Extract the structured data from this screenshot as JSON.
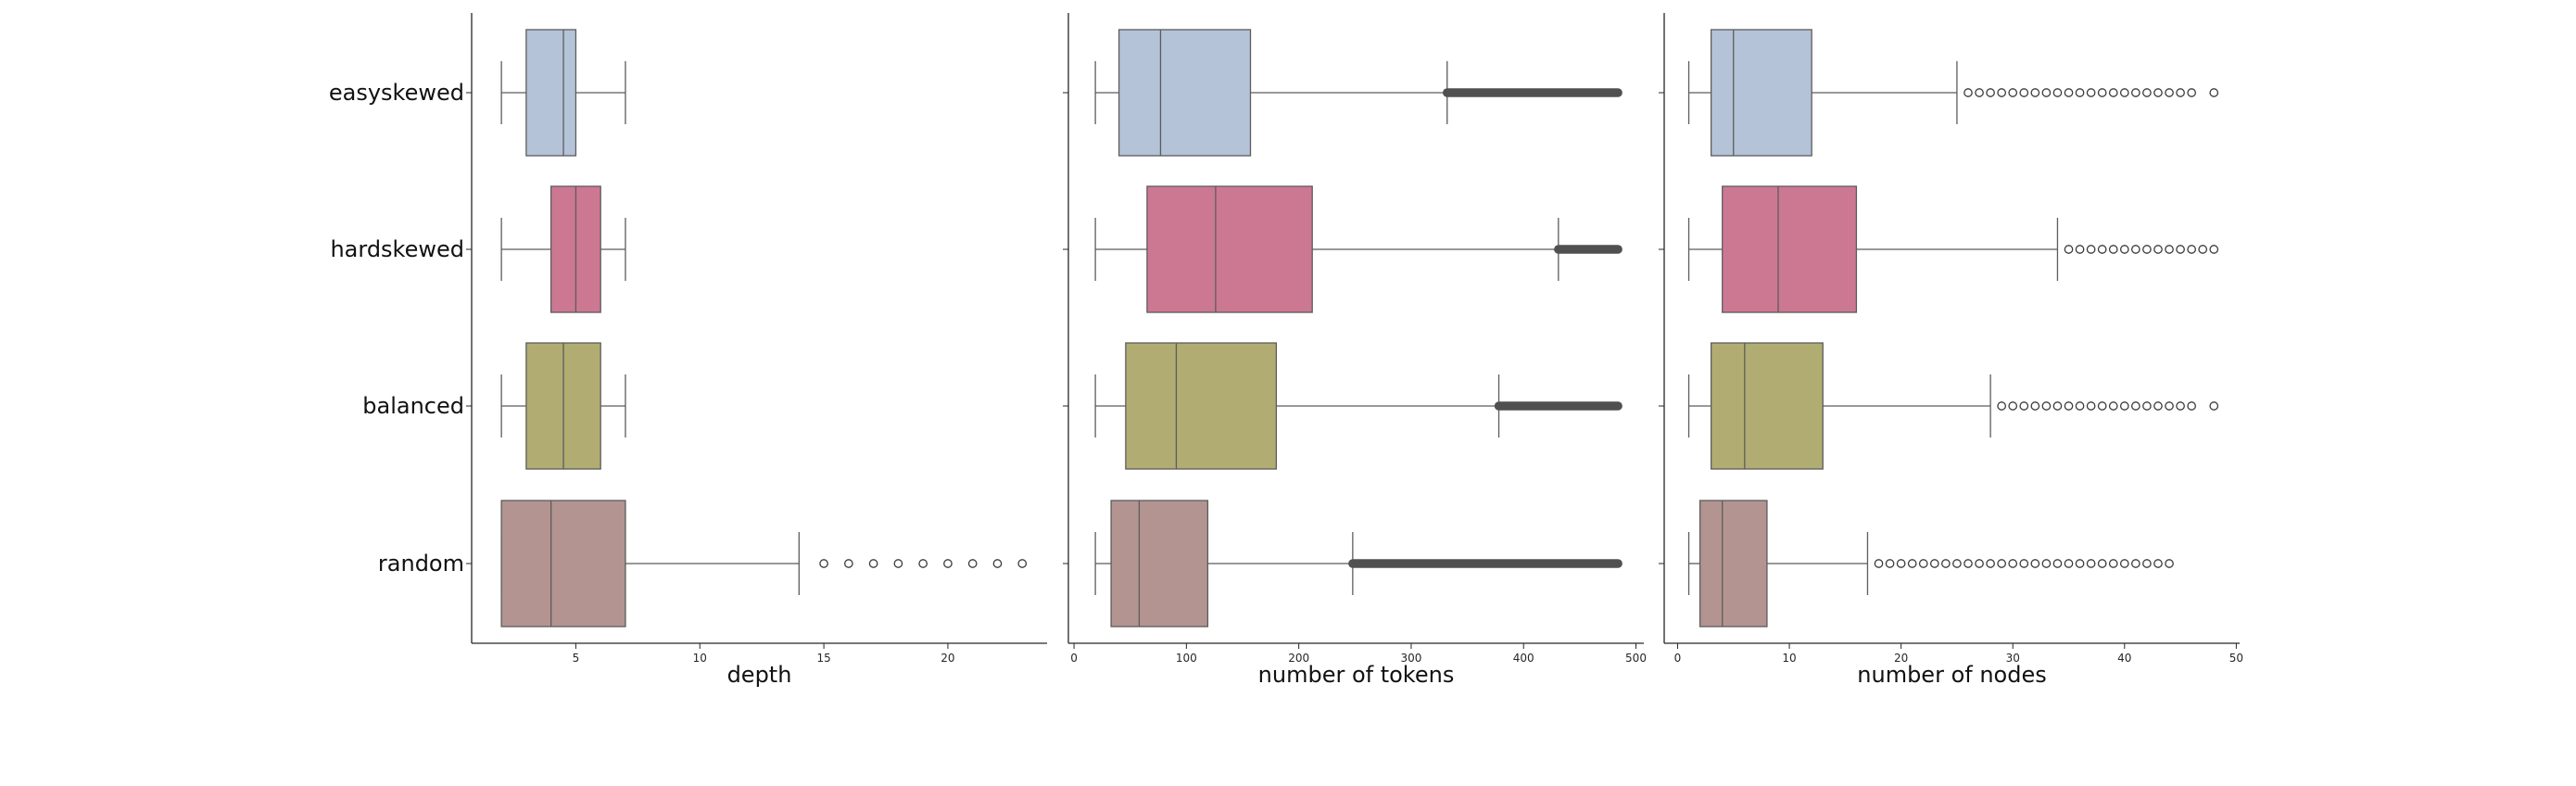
{
  "chart_data": [
    {
      "type": "boxplot",
      "orientation": "horizontal",
      "xlabel": "depth",
      "categories": [
        "easyskewed",
        "hardskewed",
        "balanced",
        "random"
      ],
      "xlim": [
        0.8,
        24
      ],
      "xticks": [
        5,
        10,
        15,
        20
      ],
      "colors": [
        "#b4c3d8",
        "#cc7893",
        "#b1ad72",
        "#b39491"
      ],
      "boxes": [
        {
          "category": "easyskewed",
          "whislo": 2,
          "q1": 3,
          "med": 4.5,
          "q3": 5,
          "whishi": 7,
          "fliers": []
        },
        {
          "category": "hardskewed",
          "whislo": 2,
          "q1": 4,
          "med": 5,
          "q3": 6,
          "whishi": 7,
          "fliers": []
        },
        {
          "category": "balanced",
          "whislo": 2,
          "q1": 3,
          "med": 4.5,
          "q3": 6,
          "whishi": 7,
          "fliers": []
        },
        {
          "category": "random",
          "whislo": 2,
          "q1": 2,
          "med": 4,
          "q3": 7,
          "whishi": 14,
          "fliers": [
            15,
            16,
            17,
            18,
            19,
            20,
            21,
            22,
            23
          ]
        }
      ]
    },
    {
      "type": "boxplot",
      "orientation": "horizontal",
      "xlabel": "number of tokens",
      "categories": [
        "easyskewed",
        "hardskewed",
        "balanced",
        "random"
      ],
      "xlim": [
        -5,
        507
      ],
      "xticks": [
        0,
        100,
        200,
        300,
        400,
        500
      ],
      "colors": [
        "#b4c3d8",
        "#cc7893",
        "#b1ad72",
        "#b39491"
      ],
      "boxes": [
        {
          "category": "easyskewed",
          "whislo": 19,
          "q1": 40,
          "med": 77,
          "q3": 157,
          "whishi": 332,
          "flier_range": [
            332,
            484
          ]
        },
        {
          "category": "hardskewed",
          "whislo": 19,
          "q1": 65,
          "med": 126,
          "q3": 212,
          "whishi": 431,
          "flier_range": [
            431,
            484
          ]
        },
        {
          "category": "balanced",
          "whislo": 19,
          "q1": 46,
          "med": 91,
          "q3": 180,
          "whishi": 378,
          "flier_range": [
            378,
            484
          ]
        },
        {
          "category": "random",
          "whislo": 19,
          "q1": 33,
          "med": 58,
          "q3": 119,
          "whishi": 248,
          "flier_range": [
            248,
            484
          ]
        }
      ]
    },
    {
      "type": "boxplot",
      "orientation": "horizontal",
      "xlabel": "number of nodes",
      "categories": [
        "easyskewed",
        "hardskewed",
        "balanced",
        "random"
      ],
      "xlim": [
        -1.2,
        50.3
      ],
      "xticks": [
        0,
        10,
        20,
        30,
        40,
        50
      ],
      "colors": [
        "#b4c3d8",
        "#cc7893",
        "#b1ad72",
        "#b39491"
      ],
      "boxes": [
        {
          "category": "easyskewed",
          "whislo": 1,
          "q1": 3,
          "med": 5,
          "q3": 12,
          "whishi": 25,
          "fliers": [
            26,
            27,
            28,
            29,
            30,
            31,
            32,
            33,
            34,
            35,
            36,
            37,
            38,
            39,
            40,
            41,
            42,
            43,
            44,
            45,
            46,
            48
          ]
        },
        {
          "category": "hardskewed",
          "whislo": 1,
          "q1": 4,
          "med": 9,
          "q3": 16,
          "whishi": 34,
          "fliers": [
            35,
            36,
            37,
            38,
            39,
            40,
            41,
            42,
            43,
            44,
            45,
            46,
            47,
            48
          ]
        },
        {
          "category": "balanced",
          "whislo": 1,
          "q1": 3,
          "med": 6,
          "q3": 13,
          "whishi": 28,
          "fliers": [
            29,
            30,
            31,
            32,
            33,
            34,
            35,
            36,
            37,
            38,
            39,
            40,
            41,
            42,
            43,
            44,
            45,
            46,
            48
          ]
        },
        {
          "category": "random",
          "whislo": 1,
          "q1": 2,
          "med": 4,
          "q3": 8,
          "whishi": 17,
          "fliers": [
            18,
            19,
            20,
            21,
            22,
            23,
            24,
            25,
            26,
            27,
            28,
            29,
            30,
            31,
            32,
            33,
            34,
            35,
            36,
            37,
            38,
            39,
            40,
            41,
            42,
            43,
            44
          ]
        }
      ]
    }
  ]
}
